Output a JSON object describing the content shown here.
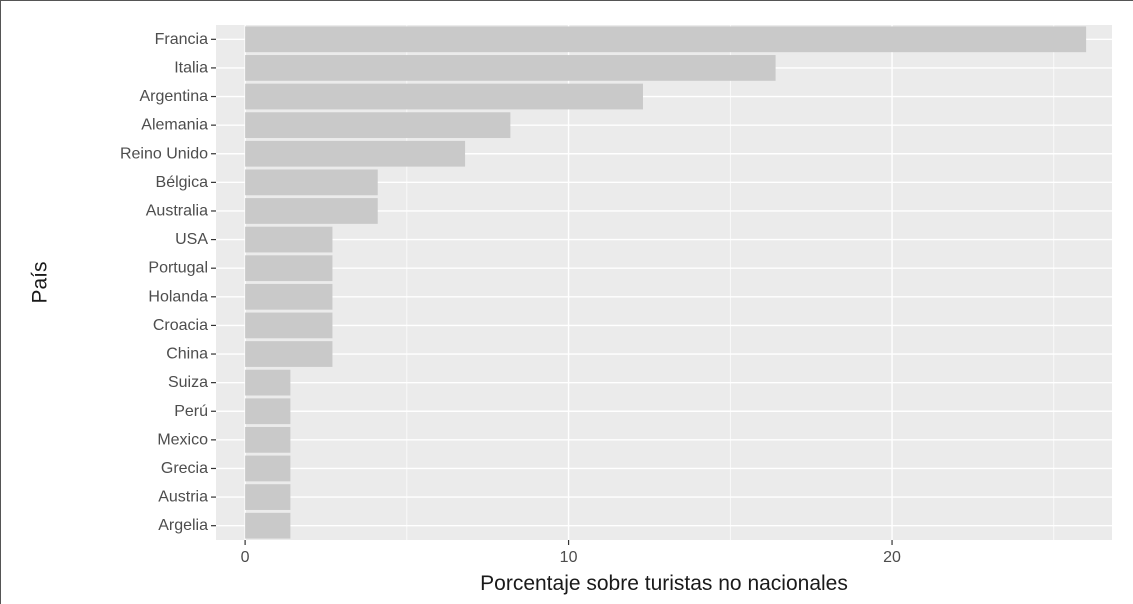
{
  "chart_data": {
    "type": "bar",
    "orientation": "horizontal",
    "categories": [
      "Francia",
      "Italia",
      "Argentina",
      "Alemania",
      "Reino Unido",
      "Bélgica",
      "Australia",
      "USA",
      "Portugal",
      "Holanda",
      "Croacia",
      "China",
      "Suiza",
      "Perú",
      "Mexico",
      "Grecia",
      "Austria",
      "Argelia"
    ],
    "values": [
      26,
      16.4,
      12.3,
      8.2,
      6.8,
      4.1,
      4.1,
      2.7,
      2.7,
      2.7,
      2.7,
      2.7,
      1.4,
      1.4,
      1.4,
      1.4,
      1.4,
      1.4
    ],
    "xlabel": "Porcentaje sobre turistas no nacionales",
    "ylabel": "País",
    "xlim": [
      -0.9,
      26.8
    ],
    "xticks": [
      0,
      10,
      20
    ],
    "x_minor_ticks": [
      5,
      15,
      25
    ],
    "grid": true,
    "colors": {
      "panel": "#ebebeb",
      "grid": "#ffffff",
      "bar": "#c9c9c9",
      "tick_text": "#4d4d4d",
      "title_text": "#1a1a1a"
    }
  }
}
